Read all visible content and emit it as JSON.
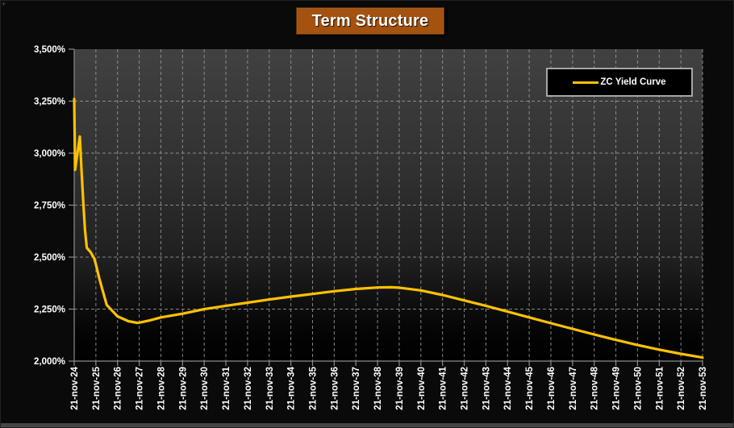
{
  "window": {
    "corner_glyph": "+",
    "background": "#0a0a0a",
    "bottom_bar_color": "#454545"
  },
  "title": {
    "text": "Term Structure",
    "bg_color": "#A3520F",
    "text_color": "#FFFFFF"
  },
  "legend": {
    "label": "ZC Yield Curve",
    "line_color": "#FFC103",
    "bg_color": "#000000",
    "border_color": "#A6A6A6",
    "position": "top-right"
  },
  "chart_data": {
    "type": "line",
    "title": "Term Structure",
    "xlabel": "",
    "ylabel": "",
    "grid": "dashed",
    "grid_color": "#9a9a9a",
    "axis_color": "#8c8c8c",
    "label_color": "#ffffff",
    "plot_bg_gradient": [
      "#414141",
      "#313131",
      "#1f1f1f",
      "#050505",
      "#000000"
    ],
    "legend_position": "top-right",
    "x_range_years": [
      24,
      53
    ],
    "y_range_pct": [
      2.0,
      3.5
    ],
    "y_ticks": [
      2.0,
      2.25,
      2.5,
      2.75,
      3.0,
      3.25,
      3.5
    ],
    "y_tick_labels": [
      "2,000%",
      "2,250%",
      "2,500%",
      "2,750%",
      "3,000%",
      "3,250%",
      "3,500%"
    ],
    "x_tick_labels": [
      "21-nov-24",
      "21-nov-25",
      "21-nov-26",
      "21-nov-27",
      "21-nov-28",
      "21-nov-29",
      "21-nov-30",
      "21-nov-31",
      "21-nov-32",
      "21-nov-33",
      "21-nov-34",
      "21-nov-35",
      "21-nov-36",
      "21-nov-37",
      "21-nov-38",
      "21-nov-39",
      "21-nov-40",
      "21-nov-41",
      "21-nov-42",
      "21-nov-43",
      "21-nov-44",
      "21-nov-45",
      "21-nov-46",
      "21-nov-47",
      "21-nov-48",
      "21-nov-49",
      "21-nov-50",
      "21-nov-51",
      "21-nov-52",
      "21-nov-53"
    ],
    "series": [
      {
        "name": "ZC Yield Curve",
        "color": "#FFC103",
        "points": [
          [
            24.0,
            3.26
          ],
          [
            24.04,
            2.92
          ],
          [
            24.26,
            3.08
          ],
          [
            24.33,
            2.93
          ],
          [
            24.42,
            2.76
          ],
          [
            24.5,
            2.63
          ],
          [
            24.58,
            2.545
          ],
          [
            24.75,
            2.525
          ],
          [
            24.92,
            2.495
          ],
          [
            25.0,
            2.465
          ],
          [
            25.15,
            2.4
          ],
          [
            25.5,
            2.27
          ],
          [
            26.0,
            2.215
          ],
          [
            26.5,
            2.192
          ],
          [
            26.9,
            2.184
          ],
          [
            27.0,
            2.185
          ],
          [
            27.5,
            2.196
          ],
          [
            28.0,
            2.21
          ],
          [
            29.0,
            2.228
          ],
          [
            30.0,
            2.25
          ],
          [
            31.0,
            2.266
          ],
          [
            32.0,
            2.281
          ],
          [
            33.0,
            2.296
          ],
          [
            34.0,
            2.31
          ],
          [
            35.0,
            2.323
          ],
          [
            36.0,
            2.336
          ],
          [
            37.0,
            2.347
          ],
          [
            38.0,
            2.354
          ],
          [
            38.6,
            2.355
          ],
          [
            39.0,
            2.353
          ],
          [
            40.0,
            2.34
          ],
          [
            41.0,
            2.318
          ],
          [
            42.0,
            2.292
          ],
          [
            43.0,
            2.266
          ],
          [
            44.0,
            2.238
          ],
          [
            45.0,
            2.21
          ],
          [
            46.0,
            2.182
          ],
          [
            47.0,
            2.155
          ],
          [
            48.0,
            2.128
          ],
          [
            49.0,
            2.102
          ],
          [
            50.0,
            2.077
          ],
          [
            51.0,
            2.055
          ],
          [
            52.0,
            2.035
          ],
          [
            53.0,
            2.017
          ]
        ]
      }
    ]
  }
}
